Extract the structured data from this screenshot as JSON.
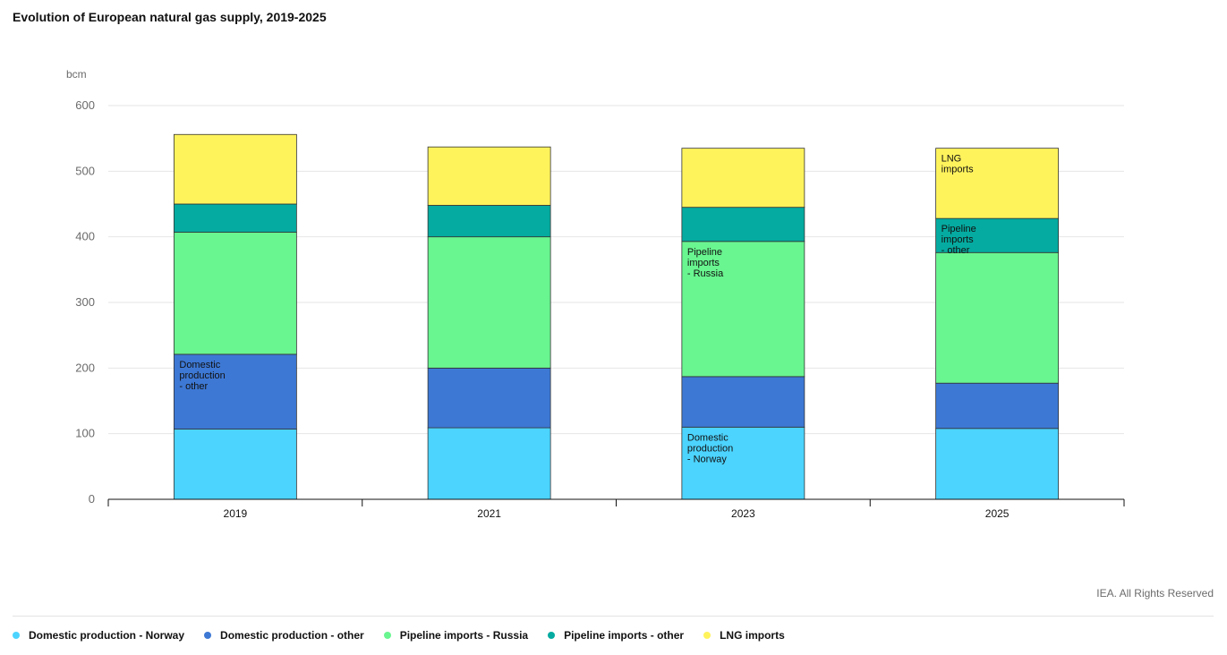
{
  "header": {
    "title": "Evolution of European natural gas supply, 2019-2025"
  },
  "footer": {
    "credit": "IEA. All Rights Reserved"
  },
  "chart_data": {
    "type": "bar",
    "stacked": true,
    "title": "Evolution of European natural gas supply, 2019-2025",
    "ylabel": "bcm",
    "ylim": [
      0,
      600
    ],
    "yticks": [
      0,
      100,
      200,
      300,
      400,
      500,
      600
    ],
    "grid": true,
    "legend_position": "bottom",
    "categories": [
      "2019",
      "2021",
      "2023",
      "2025"
    ],
    "series": [
      {
        "name": "Domestic production - Norway",
        "color": "#4cd4ff",
        "values": [
          107,
          109,
          110,
          108
        ]
      },
      {
        "name": "Domestic production - other",
        "color": "#3d78d4",
        "values": [
          114,
          91,
          77,
          69
        ]
      },
      {
        "name": "Pipeline imports - Russia",
        "color": "#69f590",
        "values": [
          186,
          200,
          206,
          199
        ]
      },
      {
        "name": "Pipeline imports - other",
        "color": "#05aba0",
        "values": [
          43,
          48,
          52,
          52
        ]
      },
      {
        "name": "LNG imports",
        "color": "#fff35c",
        "values": [
          106,
          89,
          90,
          107
        ]
      }
    ],
    "annotations": [
      {
        "series": 1,
        "category": 0,
        "lines": [
          "Domestic",
          "production",
          "- other"
        ]
      },
      {
        "series": 0,
        "category": 2,
        "lines": [
          "Domestic",
          "production",
          "- Norway"
        ]
      },
      {
        "series": 2,
        "category": 2,
        "lines": [
          "Pipeline",
          "imports",
          "- Russia"
        ]
      },
      {
        "series": 3,
        "category": 3,
        "lines": [
          "Pipeline",
          "imports",
          "- other"
        ]
      },
      {
        "series": 4,
        "category": 3,
        "lines": [
          "LNG",
          "imports"
        ]
      }
    ]
  }
}
